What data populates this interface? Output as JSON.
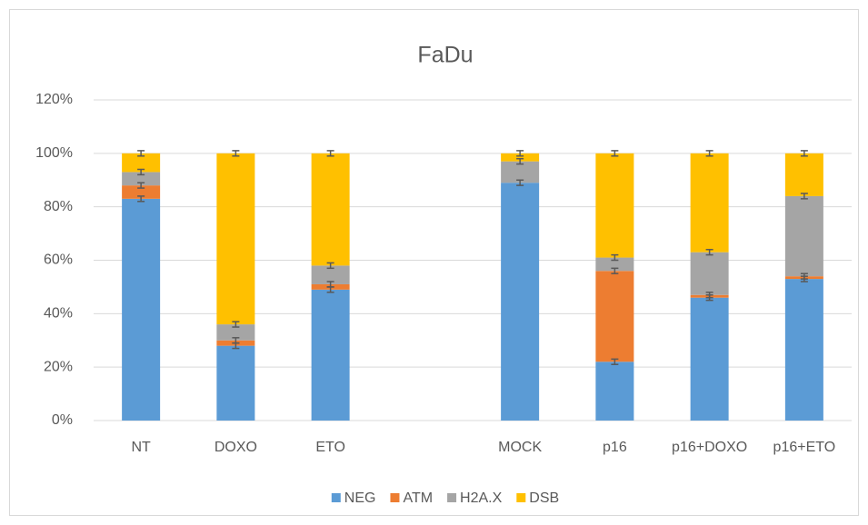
{
  "chart_data": {
    "type": "bar",
    "stacked": true,
    "title": "FaDu",
    "categories": [
      "NT",
      "DOXO",
      "ETO",
      null,
      "MOCK",
      "p16",
      "p16+DOXO",
      "p16+ETO"
    ],
    "series": [
      {
        "name": "NEG",
        "color": "#5b9bd5",
        "values": [
          83,
          28,
          49,
          null,
          89,
          22,
          46,
          53
        ],
        "errors": [
          1,
          1,
          1,
          null,
          1,
          1,
          1,
          1
        ]
      },
      {
        "name": "ATM",
        "color": "#ed7d31",
        "values": [
          5,
          2,
          2,
          null,
          0,
          34,
          1,
          1
        ],
        "errors": [
          1,
          1,
          1,
          null,
          null,
          1,
          1,
          1
        ]
      },
      {
        "name": "H2A.X",
        "color": "#a5a5a5",
        "values": [
          5,
          6,
          7,
          null,
          8,
          5,
          16,
          30
        ],
        "errors": [
          1,
          1,
          1,
          null,
          1,
          1,
          1,
          1
        ]
      },
      {
        "name": "DSB",
        "color": "#ffc000",
        "values": [
          7,
          64,
          42,
          null,
          3,
          39,
          37,
          16
        ],
        "errors": [
          1,
          1,
          1,
          null,
          1,
          1,
          1,
          1
        ]
      }
    ],
    "ylim": [
      0,
      120
    ],
    "yticks": [
      {
        "value": 0,
        "label": "0%"
      },
      {
        "value": 20,
        "label": "20%"
      },
      {
        "value": 40,
        "label": "40%"
      },
      {
        "value": 60,
        "label": "60%"
      },
      {
        "value": 80,
        "label": "80%"
      },
      {
        "value": 100,
        "label": "100%"
      },
      {
        "value": 120,
        "label": "120%"
      }
    ],
    "grid": true,
    "legend": "bottom",
    "error_color": "#595959"
  }
}
